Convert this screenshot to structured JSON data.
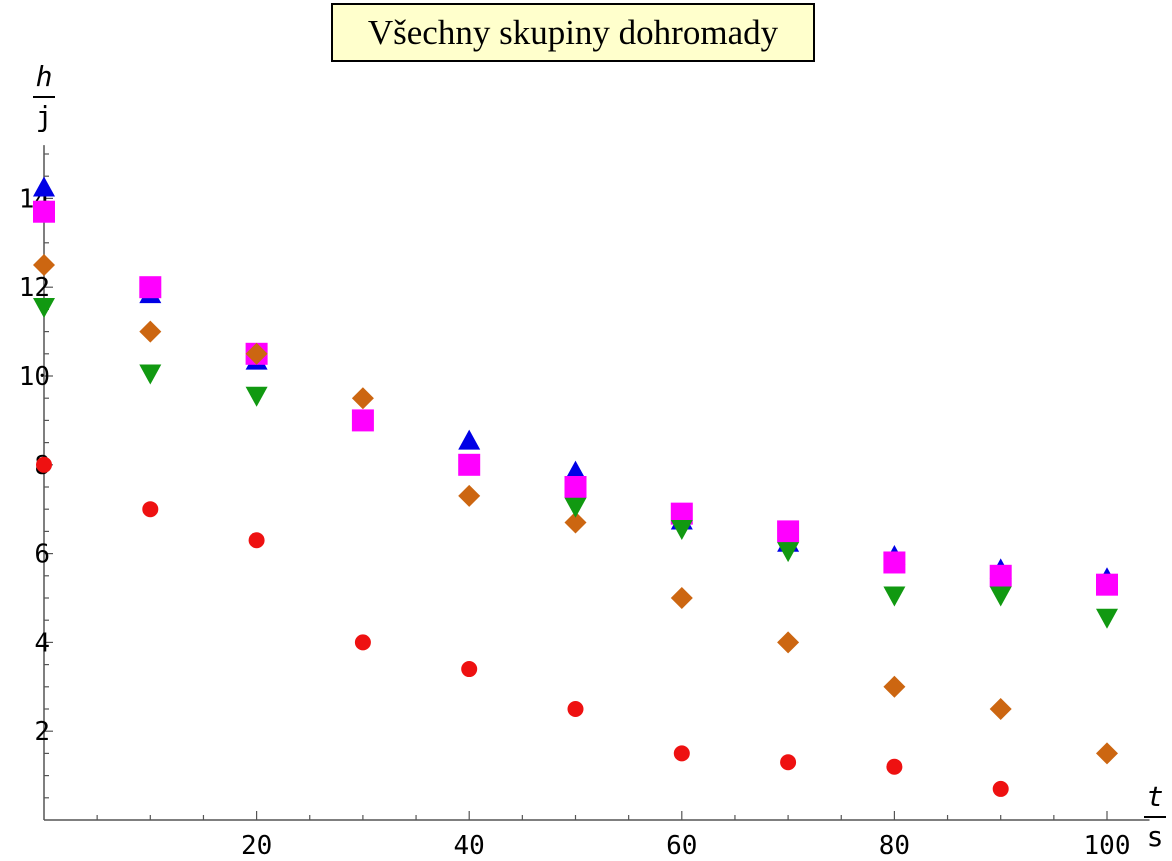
{
  "chart_data": {
    "type": "scatter",
    "title": "Všechny skupiny dohromady",
    "ylabel": {
      "numerator": "h",
      "denominator": "j"
    },
    "xlabel": {
      "numerator": "t",
      "denominator": "s"
    },
    "xlim": [
      0,
      104
    ],
    "ylim": [
      0,
      15.2
    ],
    "x_ticks": [
      20,
      40,
      60,
      80,
      100
    ],
    "y_ticks": [
      2,
      4,
      6,
      8,
      10,
      12,
      14
    ],
    "x": [
      0,
      10,
      20,
      30,
      40,
      50,
      60,
      70,
      80,
      90,
      100
    ],
    "series": [
      {
        "marker": "triangle-up",
        "color": "#0000e6",
        "values": [
          14.2,
          11.8,
          10.3,
          null,
          8.5,
          7.8,
          6.7,
          6.2,
          5.9,
          5.6,
          5.4
        ]
      },
      {
        "marker": "square",
        "color": "#ff00ff",
        "values": [
          13.7,
          12.0,
          10.5,
          9.0,
          8.0,
          7.5,
          6.9,
          6.5,
          5.8,
          5.5,
          5.3
        ]
      },
      {
        "marker": "diamond",
        "color": "#cc6611",
        "values": [
          12.5,
          11.0,
          10.5,
          9.5,
          7.3,
          6.7,
          5.0,
          4.0,
          3.0,
          2.5,
          1.5
        ]
      },
      {
        "marker": "triangle-down",
        "color": "#119911",
        "values": [
          11.6,
          10.1,
          9.6,
          null,
          null,
          7.1,
          6.6,
          6.1,
          5.1,
          5.1,
          4.6
        ]
      },
      {
        "marker": "circle",
        "color": "#ee1111",
        "values": [
          8.0,
          7.0,
          6.3,
          4.0,
          3.4,
          2.5,
          1.5,
          1.3,
          1.2,
          0.7,
          null
        ]
      }
    ]
  }
}
